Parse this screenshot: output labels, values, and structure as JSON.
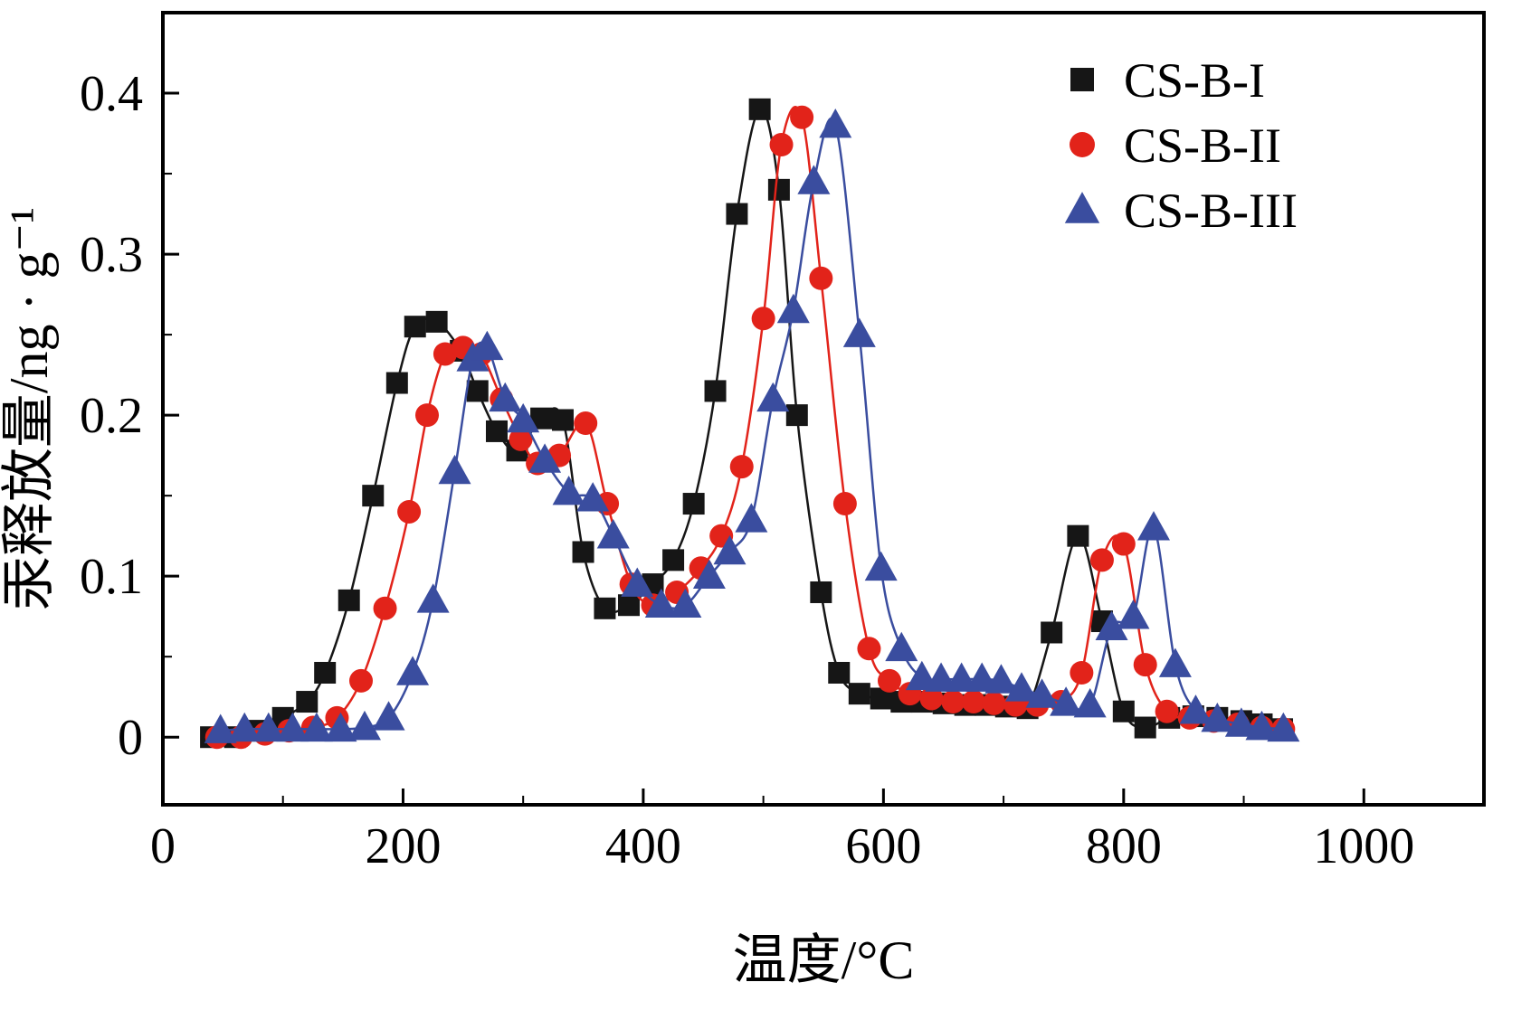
{
  "chart_data": {
    "type": "line",
    "title": "",
    "xlabel": "温度/°C",
    "ylabel": "汞释放量/ng · g⁻¹",
    "xlim": [
      0,
      1100
    ],
    "ylim": [
      -0.042,
      0.45
    ],
    "xticks": [
      0,
      200,
      400,
      600,
      800,
      1000
    ],
    "xtick_labels": [
      "0",
      "200",
      "400",
      "600",
      "800",
      "1000"
    ],
    "yticks": [
      0,
      0.1,
      0.2,
      0.3,
      0.4
    ],
    "ytick_labels": [
      "0",
      "0.1",
      "0.2",
      "0.3",
      "0.4"
    ],
    "grid": false,
    "legend_position": "top-right",
    "frame_color": "#000000",
    "series": [
      {
        "name": "CS-B-I",
        "color": "#161616",
        "marker": "square",
        "x": [
          40,
          60,
          80,
          100,
          120,
          135,
          155,
          175,
          195,
          210,
          228,
          248,
          262,
          278,
          295,
          315,
          333,
          350,
          368,
          388,
          408,
          425,
          442,
          460,
          478,
          497,
          513,
          528,
          548,
          563,
          580,
          598,
          615,
          632,
          650,
          668,
          685,
          702,
          720,
          740,
          762,
          782,
          800,
          818,
          838,
          858,
          878,
          898,
          915,
          932
        ],
        "y": [
          0.0,
          0.0,
          0.004,
          0.012,
          0.022,
          0.04,
          0.085,
          0.15,
          0.22,
          0.255,
          0.258,
          0.24,
          0.215,
          0.19,
          0.178,
          0.198,
          0.197,
          0.115,
          0.08,
          0.082,
          0.095,
          0.11,
          0.145,
          0.215,
          0.325,
          0.39,
          0.34,
          0.2,
          0.09,
          0.04,
          0.027,
          0.024,
          0.022,
          0.022,
          0.021,
          0.02,
          0.02,
          0.019,
          0.018,
          0.065,
          0.125,
          0.072,
          0.016,
          0.006,
          0.012,
          0.013,
          0.012,
          0.01,
          0.008,
          0.005
        ]
      },
      {
        "name": "CS-B-II",
        "color": "#e2231a",
        "marker": "circle",
        "x": [
          45,
          65,
          85,
          105,
          125,
          145,
          165,
          185,
          205,
          220,
          235,
          250,
          265,
          282,
          298,
          312,
          330,
          352,
          370,
          390,
          408,
          428,
          448,
          465,
          482,
          500,
          515,
          532,
          548,
          568,
          588,
          605,
          622,
          640,
          658,
          675,
          692,
          710,
          728,
          748,
          765,
          782,
          800,
          818,
          836,
          855,
          875,
          895,
          915,
          933
        ],
        "y": [
          0.0,
          0.0,
          0.002,
          0.004,
          0.006,
          0.012,
          0.035,
          0.08,
          0.14,
          0.2,
          0.238,
          0.242,
          0.238,
          0.21,
          0.185,
          0.17,
          0.175,
          0.195,
          0.145,
          0.095,
          0.082,
          0.09,
          0.105,
          0.125,
          0.168,
          0.26,
          0.368,
          0.385,
          0.285,
          0.145,
          0.055,
          0.035,
          0.027,
          0.024,
          0.022,
          0.022,
          0.021,
          0.02,
          0.02,
          0.022,
          0.04,
          0.11,
          0.12,
          0.045,
          0.016,
          0.012,
          0.01,
          0.008,
          0.006,
          0.005
        ]
      },
      {
        "name": "CS-B-III",
        "color": "#3a4d9f",
        "marker": "triangle",
        "x": [
          48,
          68,
          88,
          108,
          128,
          148,
          168,
          188,
          208,
          225,
          243,
          258,
          270,
          285,
          300,
          318,
          338,
          358,
          375,
          395,
          415,
          435,
          455,
          472,
          490,
          508,
          525,
          542,
          560,
          580,
          598,
          615,
          632,
          648,
          665,
          682,
          698,
          715,
          732,
          752,
          772,
          790,
          808,
          825,
          843,
          860,
          878,
          898,
          915,
          933
        ],
        "y": [
          0.004,
          0.005,
          0.005,
          0.005,
          0.005,
          0.005,
          0.006,
          0.012,
          0.04,
          0.085,
          0.165,
          0.235,
          0.242,
          0.21,
          0.197,
          0.172,
          0.152,
          0.148,
          0.125,
          0.095,
          0.082,
          0.082,
          0.1,
          0.115,
          0.135,
          0.21,
          0.265,
          0.345,
          0.38,
          0.25,
          0.105,
          0.055,
          0.037,
          0.036,
          0.036,
          0.036,
          0.035,
          0.03,
          0.026,
          0.021,
          0.02,
          0.068,
          0.075,
          0.13,
          0.045,
          0.016,
          0.011,
          0.008,
          0.006,
          0.005
        ]
      }
    ]
  }
}
